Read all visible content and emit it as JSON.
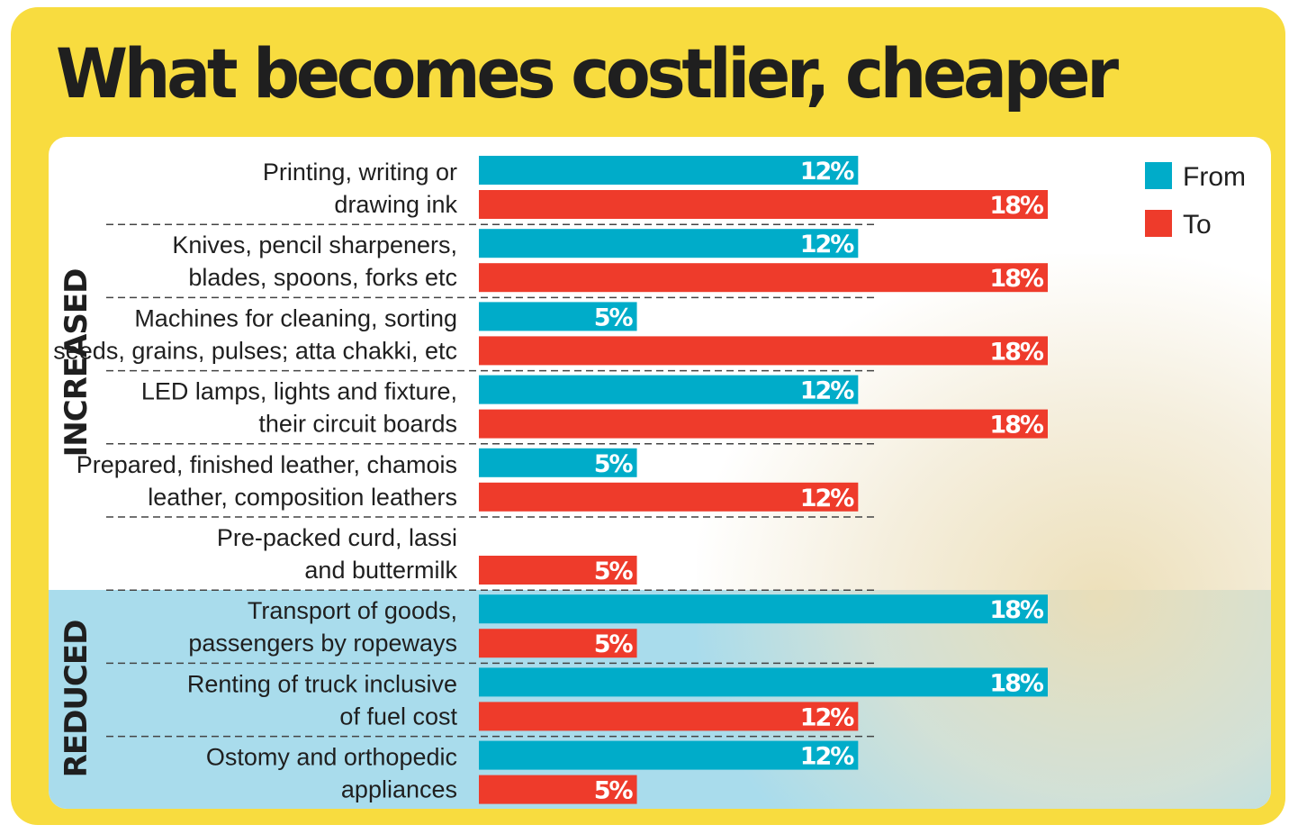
{
  "title": "What becomes costlier, cheaper",
  "colors": {
    "frame": "#f8dc3f",
    "from": "#00acc9",
    "to": "#ee3b2b",
    "reduced_band": "#a9dcec"
  },
  "chart_data": {
    "type": "bar",
    "orientation": "horizontal",
    "title": "What becomes costlier, cheaper",
    "unit": "%",
    "xlim": [
      0,
      18
    ],
    "grid": false,
    "legend": {
      "position": "top-right",
      "entries": [
        "From",
        "To"
      ]
    },
    "groups": [
      "INCREASED",
      "REDUCED"
    ],
    "categories": [
      {
        "line1": "Printing, writing or",
        "line2": "drawing ink",
        "group": "INCREASED"
      },
      {
        "line1": "Knives, pencil sharpeners,",
        "line2": "blades, spoons, forks etc",
        "group": "INCREASED"
      },
      {
        "line1": "Machines for cleaning, sorting",
        "line2": "seeds, grains, pulses; atta chakki, etc",
        "group": "INCREASED"
      },
      {
        "line1": "LED lamps, lights and fixture,",
        "line2": "their circuit boards",
        "group": "INCREASED"
      },
      {
        "line1": "Prepared, finished leather, chamois",
        "line2": "leather, composition leathers",
        "group": "INCREASED"
      },
      {
        "line1": "Pre-packed curd, lassi",
        "line2": "and buttermilk",
        "group": "INCREASED"
      },
      {
        "line1": "Transport of goods,",
        "line2": "passengers by ropeways",
        "group": "REDUCED"
      },
      {
        "line1": "Renting of truck inclusive",
        "line2": "of fuel cost",
        "group": "REDUCED"
      },
      {
        "line1": "Ostomy and orthopedic",
        "line2": "appliances",
        "group": "REDUCED"
      }
    ],
    "series": [
      {
        "name": "From",
        "color": "#00acc9",
        "values": [
          12,
          12,
          5,
          12,
          5,
          0,
          18,
          18,
          12
        ]
      },
      {
        "name": "To",
        "color": "#ee3b2b",
        "values": [
          18,
          18,
          18,
          18,
          12,
          5,
          5,
          12,
          5
        ]
      }
    ]
  }
}
